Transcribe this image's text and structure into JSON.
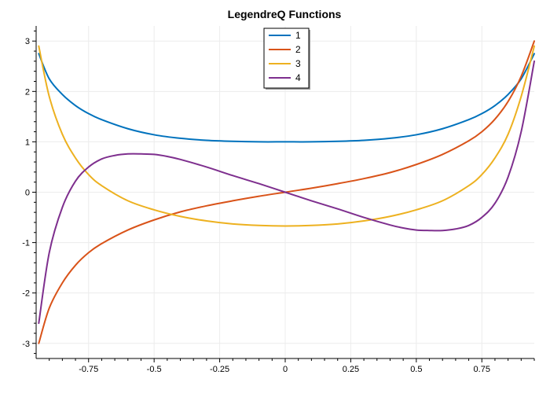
{
  "chart_data": {
    "type": "line",
    "title": "LegendreQ Functions",
    "xlabel": "",
    "ylabel": "",
    "xlim": [
      -0.95,
      0.95
    ],
    "ylim": [
      -3.3,
      3.3
    ],
    "x_ticks": [
      -0.75,
      -0.5,
      -0.25,
      0,
      0.25,
      0.5,
      0.75
    ],
    "x_tick_labels": [
      "-0.75",
      "-0.5",
      "-0.25",
      "0",
      "0.25",
      "0.5",
      "0.75"
    ],
    "y_ticks": [
      -3,
      -2,
      -1,
      0,
      1,
      2,
      3
    ],
    "y_tick_labels": [
      "-3",
      "-2",
      "-1",
      "0",
      "1",
      "2",
      "3"
    ],
    "grid": true,
    "legend_position": "top-center",
    "series": [
      {
        "name": "1",
        "color": "#0072BD",
        "x": [
          -0.94,
          -0.9,
          -0.85,
          -0.8,
          -0.75,
          -0.7,
          -0.6,
          -0.5,
          -0.4,
          -0.3,
          -0.2,
          -0.1,
          0,
          0.1,
          0.2,
          0.3,
          0.4,
          0.5,
          0.6,
          0.7,
          0.75,
          0.8,
          0.85,
          0.9,
          0.95
        ],
        "values": [
          2.75,
          2.25,
          1.94,
          1.72,
          1.56,
          1.44,
          1.26,
          1.14,
          1.07,
          1.03,
          1.01,
          1.0,
          1.0,
          1.0,
          1.01,
          1.03,
          1.07,
          1.14,
          1.26,
          1.44,
          1.56,
          1.72,
          1.94,
          2.25,
          2.75
        ]
      },
      {
        "name": "2",
        "color": "#D95319",
        "x": [
          -0.94,
          -0.9,
          -0.85,
          -0.8,
          -0.75,
          -0.7,
          -0.6,
          -0.5,
          -0.4,
          -0.3,
          -0.2,
          -0.1,
          0,
          0.1,
          0.2,
          0.3,
          0.4,
          0.5,
          0.6,
          0.7,
          0.75,
          0.8,
          0.85,
          0.9,
          0.95
        ],
        "values": [
          -3.0,
          -2.3,
          -1.8,
          -1.45,
          -1.2,
          -1.02,
          -0.75,
          -0.55,
          -0.39,
          -0.27,
          -0.17,
          -0.08,
          0,
          0.08,
          0.17,
          0.27,
          0.39,
          0.55,
          0.75,
          1.02,
          1.2,
          1.45,
          1.8,
          2.3,
          3.0
        ]
      },
      {
        "name": "3",
        "color": "#EDB120",
        "x": [
          -0.94,
          -0.9,
          -0.85,
          -0.8,
          -0.75,
          -0.7,
          -0.6,
          -0.5,
          -0.4,
          -0.3,
          -0.2,
          -0.1,
          0,
          0.1,
          0.2,
          0.3,
          0.4,
          0.5,
          0.6,
          0.7,
          0.75,
          0.8,
          0.85,
          0.9,
          0.95
        ],
        "values": [
          2.9,
          1.9,
          1.15,
          0.68,
          0.35,
          0.13,
          -0.17,
          -0.35,
          -0.48,
          -0.57,
          -0.63,
          -0.66,
          -0.67,
          -0.66,
          -0.63,
          -0.57,
          -0.48,
          -0.35,
          -0.17,
          0.13,
          0.35,
          0.68,
          1.15,
          1.9,
          2.9
        ]
      },
      {
        "name": "4",
        "color": "#7E2F8E",
        "x": [
          -0.94,
          -0.9,
          -0.85,
          -0.8,
          -0.75,
          -0.7,
          -0.65,
          -0.6,
          -0.55,
          -0.5,
          -0.45,
          -0.4,
          -0.3,
          -0.2,
          -0.1,
          0,
          0.1,
          0.2,
          0.3,
          0.4,
          0.45,
          0.5,
          0.55,
          0.6,
          0.65,
          0.7,
          0.75,
          0.8,
          0.85,
          0.9,
          0.95
        ],
        "values": [
          -2.6,
          -1.2,
          -0.3,
          0.22,
          0.5,
          0.66,
          0.73,
          0.76,
          0.76,
          0.75,
          0.71,
          0.65,
          0.5,
          0.33,
          0.17,
          0,
          -0.17,
          -0.33,
          -0.5,
          -0.65,
          -0.71,
          -0.75,
          -0.76,
          -0.76,
          -0.73,
          -0.66,
          -0.5,
          -0.22,
          0.3,
          1.2,
          2.6
        ]
      }
    ]
  }
}
